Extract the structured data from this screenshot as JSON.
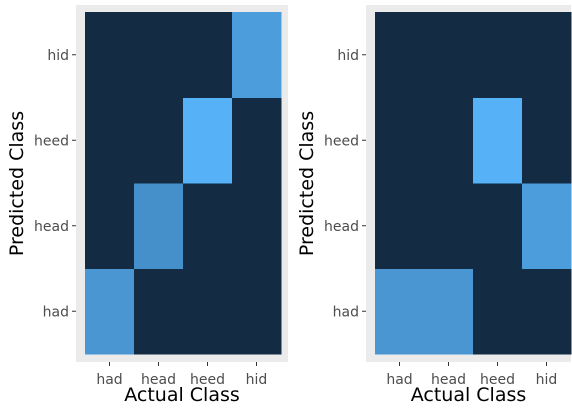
{
  "chart_data": [
    {
      "type": "heatmap",
      "xlabel": "Actual Class",
      "ylabel": "Predicted Class",
      "x_categories": [
        "had",
        "head",
        "heed",
        "hid"
      ],
      "y_categories": [
        "had",
        "head",
        "heed",
        "hid"
      ],
      "colorscale": {
        "low": "#132B43",
        "high": "#56B1F7"
      },
      "max_value": 1.0,
      "cells": [
        {
          "x": "had",
          "y": "had",
          "value": 0.8
        },
        {
          "x": "had",
          "y": "head",
          "value": 0.0
        },
        {
          "x": "had",
          "y": "heed",
          "value": 0.0
        },
        {
          "x": "had",
          "y": "hid",
          "value": 0.0
        },
        {
          "x": "head",
          "y": "had",
          "value": 0.0
        },
        {
          "x": "head",
          "y": "head",
          "value": 0.75
        },
        {
          "x": "head",
          "y": "heed",
          "value": 0.0
        },
        {
          "x": "head",
          "y": "hid",
          "value": 0.0
        },
        {
          "x": "heed",
          "y": "had",
          "value": 0.0
        },
        {
          "x": "heed",
          "y": "head",
          "value": 0.0
        },
        {
          "x": "heed",
          "y": "heed",
          "value": 1.0
        },
        {
          "x": "heed",
          "y": "hid",
          "value": 0.0
        },
        {
          "x": "hid",
          "y": "had",
          "value": 0.0
        },
        {
          "x": "hid",
          "y": "head",
          "value": 0.0
        },
        {
          "x": "hid",
          "y": "heed",
          "value": 0.0
        },
        {
          "x": "hid",
          "y": "hid",
          "value": 0.85
        }
      ]
    },
    {
      "type": "heatmap",
      "xlabel": "Actual Class",
      "ylabel": "Predicted Class",
      "x_categories": [
        "had",
        "head",
        "heed",
        "hid"
      ],
      "y_categories": [
        "had",
        "head",
        "heed",
        "hid"
      ],
      "colorscale": {
        "low": "#132B43",
        "high": "#56B1F7"
      },
      "max_value": 1.0,
      "cells": [
        {
          "x": "had",
          "y": "had",
          "value": 0.8
        },
        {
          "x": "had",
          "y": "head",
          "value": 0.0
        },
        {
          "x": "had",
          "y": "heed",
          "value": 0.0
        },
        {
          "x": "had",
          "y": "hid",
          "value": 0.0
        },
        {
          "x": "head",
          "y": "had",
          "value": 0.8
        },
        {
          "x": "head",
          "y": "head",
          "value": 0.0
        },
        {
          "x": "head",
          "y": "heed",
          "value": 0.0
        },
        {
          "x": "head",
          "y": "hid",
          "value": 0.0
        },
        {
          "x": "heed",
          "y": "had",
          "value": 0.0
        },
        {
          "x": "heed",
          "y": "head",
          "value": 0.0
        },
        {
          "x": "heed",
          "y": "heed",
          "value": 1.0
        },
        {
          "x": "heed",
          "y": "hid",
          "value": 0.0
        },
        {
          "x": "hid",
          "y": "had",
          "value": 0.0
        },
        {
          "x": "hid",
          "y": "head",
          "value": 0.85
        },
        {
          "x": "hid",
          "y": "heed",
          "value": 0.0
        },
        {
          "x": "hid",
          "y": "hid",
          "value": 0.0
        }
      ]
    }
  ]
}
